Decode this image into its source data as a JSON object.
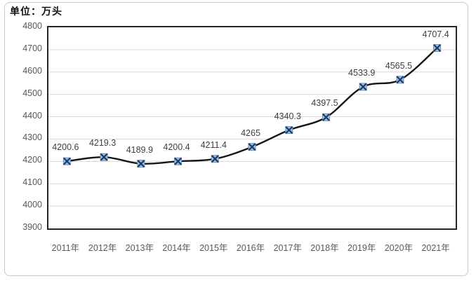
{
  "chart_data": {
    "type": "line",
    "title": "单位：万头",
    "categories": [
      "2011年",
      "2012年",
      "2013年",
      "2014年",
      "2015年",
      "2016年",
      "2017年",
      "2018年",
      "2019年",
      "2020年",
      "2021年"
    ],
    "values": [
      4200.6,
      4219.3,
      4189.9,
      4200.4,
      4211.4,
      4265,
      4340.3,
      4397.5,
      4533.9,
      4565.5,
      4707.4
    ],
    "data_labels": [
      "4200.6",
      "4219.3",
      "4189.9",
      "4200.4",
      "4211.4",
      "4265",
      "4340.3",
      "4397.5",
      "4533.9",
      "4565.5",
      "4707.4"
    ],
    "ylim": [
      3900,
      4800
    ],
    "yticks": [
      3900,
      4000,
      4100,
      4200,
      4300,
      4400,
      4500,
      4600,
      4700,
      4800
    ],
    "ytick_step": 100,
    "grid": true,
    "legend": "none",
    "marker": "x-square"
  },
  "colors": {
    "line": "#161616",
    "marker_fill": "#9dc3e6",
    "marker_edge": "#6b93b8",
    "marker_x": "#1f3864",
    "gridline": "#d9d9d9",
    "plot_border": "#262626",
    "axis_text": "#595959",
    "data_label_text": "#3f3f3f",
    "outer_border": "#c9c9c9"
  }
}
